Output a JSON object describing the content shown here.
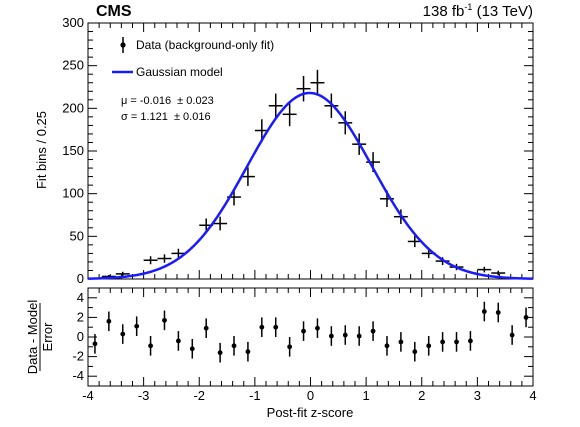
{
  "header": {
    "experiment": "CMS",
    "lumi_value": "138 fb",
    "lumi_exp": "-1",
    "energy": " (13 TeV)"
  },
  "legend": {
    "data_label": "Data (background-only fit)",
    "model_label": "Gaussian model"
  },
  "fit": {
    "mu_text": "μ = -0.016  ± 0.023",
    "sigma_text": "σ = 1.121  ± 0.016"
  },
  "colors": {
    "model": "#1a1aff",
    "data": "#000000"
  },
  "chart_data": [
    {
      "type": "scatter",
      "panel": "main",
      "xlabel": "",
      "ylabel": "Fit bins / 0.25",
      "xlim": [
        -4,
        4
      ],
      "ylim": [
        0,
        300
      ],
      "yticks": [
        "0",
        "50",
        "100",
        "150",
        "200",
        "250",
        "300"
      ],
      "bin_width": 0.25,
      "series": [
        {
          "name": "Data (background-only fit)",
          "x": [
            -3.625,
            -3.375,
            -2.875,
            -2.625,
            -2.375,
            -1.875,
            -1.625,
            -1.375,
            -1.125,
            -0.875,
            -0.625,
            -0.375,
            -0.125,
            0.125,
            0.375,
            0.625,
            0.875,
            1.125,
            1.375,
            1.625,
            1.875,
            2.125,
            2.375,
            2.625,
            3.125,
            3.375
          ],
          "y": [
            3,
            6,
            22,
            24,
            30,
            63,
            65,
            96,
            120,
            174,
            203,
            193,
            223,
            230,
            203,
            183,
            158,
            137,
            94,
            73,
            44,
            30,
            21,
            14,
            11,
            7
          ]
        },
        {
          "name": "Gaussian model",
          "mu": -0.016,
          "sigma": 1.121,
          "peak": 218
        }
      ]
    },
    {
      "type": "scatter",
      "panel": "ratio",
      "xlabel": "Post-fit z-score",
      "ylabel": "Data - Model / Error",
      "xlim": [
        -4,
        4
      ],
      "ylim": [
        -5,
        5
      ],
      "yticks": [
        "-4",
        "-2",
        "0",
        "2",
        "4"
      ],
      "xticks": [
        "-4",
        "-3",
        "-2",
        "-1",
        "0",
        "1",
        "2",
        "3",
        "4"
      ],
      "series": [
        {
          "name": "Data (background-only fit)",
          "x": [
            -3.875,
            -3.625,
            -3.375,
            -3.125,
            -2.875,
            -2.625,
            -2.375,
            -2.125,
            -1.875,
            -1.625,
            -1.375,
            -1.125,
            -0.875,
            -0.625,
            -0.375,
            -0.125,
            0.125,
            0.375,
            0.625,
            0.875,
            1.125,
            1.375,
            1.625,
            1.875,
            2.125,
            2.375,
            2.625,
            2.875,
            3.125,
            3.375,
            3.625,
            3.875
          ],
          "y": [
            -0.7,
            1.6,
            0.3,
            1.1,
            -0.9,
            1.7,
            -0.4,
            -1.2,
            0.9,
            -1.6,
            -0.9,
            -1.5,
            1.0,
            1.0,
            -1.0,
            0.6,
            0.9,
            0.1,
            0.2,
            0.1,
            0.6,
            -0.9,
            -0.5,
            -1.5,
            -0.9,
            -0.5,
            -0.5,
            -0.4,
            2.6,
            2.5,
            0.2,
            2.0
          ],
          "err": 1.0
        }
      ]
    }
  ]
}
